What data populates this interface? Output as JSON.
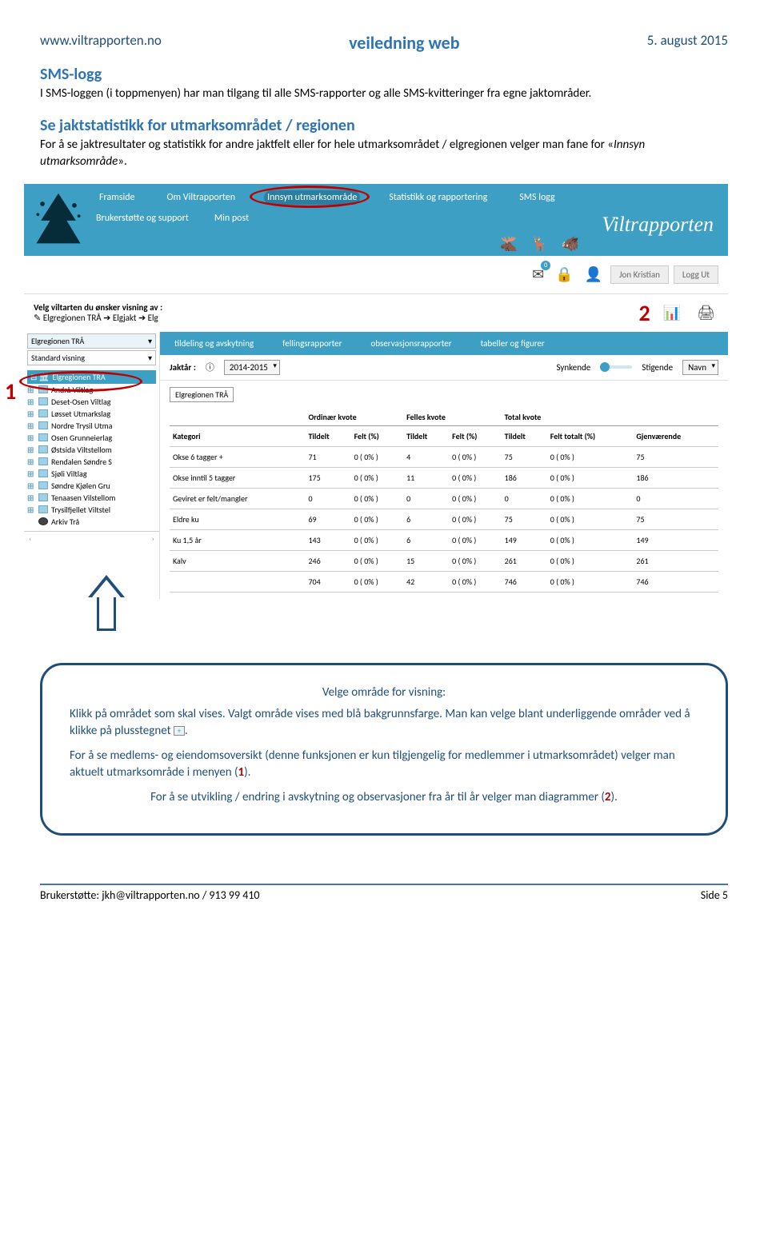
{
  "header": {
    "left": "www.viltrapporten.no",
    "center": "veiledning web",
    "right": "5. august 2015"
  },
  "s1": {
    "title": "SMS-logg",
    "body": "I SMS-loggen (i toppmenyen) har man tilgang til alle SMS-rapporter og alle SMS-kvitteringer fra egne jaktområder."
  },
  "s2": {
    "title": "Se jaktstatistikk for utmarksområdet / regionen",
    "body_a": "For å se jaktresultater og statistikk for andre jaktfelt eller for hele utmarksområdet / elgregionen velger man fane for «",
    "body_i": "Innsyn utmarksområde",
    "body_b": "»."
  },
  "nav": {
    "row1": [
      "Framside",
      "Om Viltrapporten",
      "Innsyn utmarksområde",
      "Statistikk og rapportering",
      "SMS logg"
    ],
    "row2": [
      "Brukerstøtte og support",
      "Min post"
    ],
    "logo": "Viltrapporten"
  },
  "userbar": {
    "badge": "0",
    "user": "Jon Kristian",
    "logout": "Logg Ut"
  },
  "sel": {
    "label": "Velg viltarten du ønsker visning av :",
    "crumbs": "Elgregionen TRÅ ➔ Elgjakt ➔ Elg"
  },
  "marker2": "2",
  "marker1": "1",
  "side": {
    "drop1": "Elgregionen TRÅ",
    "drop2": "Standard visning",
    "root": "Elgregionen TRÅ",
    "nodes": [
      "Andrå Viltlag",
      "Deset-Osen Viltlag",
      "Løsset Utmarkslag",
      "Nordre Trysil Utma",
      "Osen Grunneierlag",
      "Østsida Viltstellom",
      "Rendalen Søndre S",
      "Sjøli Viltlag",
      "Søndre Kjølen Gru",
      "Tenaasen Vilstellom",
      "Trysilfjellet Viltstel",
      "Arkiv Trå"
    ]
  },
  "tabs": [
    "tildeling og avskytning",
    "fellingsrapporter",
    "observasjonsrapporter",
    "tabeller og figurer"
  ],
  "filter": {
    "yearLbl": "Jaktår :",
    "year": "2014-2015",
    "sortA": "Synkende",
    "sortB": "Stigende",
    "sortCol": "Navn"
  },
  "table": {
    "tag": "Elgregionen TRÅ",
    "groupHeaders": [
      "",
      "Ordinær kvote",
      "Felles kvote",
      "Total kvote"
    ],
    "cols": [
      "Kategori",
      "Tildelt",
      "Felt (%)",
      "Tildelt",
      "Felt (%)",
      "Tildelt",
      "Felt totalt (%)",
      "Gjenværende"
    ],
    "rows": [
      [
        "Okse 6 tagger +",
        "71",
        "0 ( 0% )",
        "4",
        "0 ( 0% )",
        "75",
        "0 ( 0% )",
        "75"
      ],
      [
        "Okse inntil 5 tagger",
        "175",
        "0 ( 0% )",
        "11",
        "0 ( 0% )",
        "186",
        "0 ( 0% )",
        "186"
      ],
      [
        "Geviret er felt/mangler",
        "0",
        "0 ( 0% )",
        "0",
        "0 ( 0% )",
        "0",
        "0 ( 0% )",
        "0"
      ],
      [
        "Eldre ku",
        "69",
        "0 ( 0% )",
        "6",
        "0 ( 0% )",
        "75",
        "0 ( 0% )",
        "75"
      ],
      [
        "Ku 1,5 år",
        "143",
        "0 ( 0% )",
        "6",
        "0 ( 0% )",
        "149",
        "0 ( 0% )",
        "149"
      ],
      [
        "Kalv",
        "246",
        "0 ( 0% )",
        "15",
        "0 ( 0% )",
        "261",
        "0 ( 0% )",
        "261"
      ],
      [
        "",
        "704",
        "0 ( 0% )",
        "42",
        "0 ( 0% )",
        "746",
        "0 ( 0% )",
        "746"
      ]
    ]
  },
  "callout": {
    "title": "Velge område for visning:",
    "p1a": "Klikk på området som skal vises. Valgt område vises med blå bakgrunnsfarge. Man kan velge blant underliggende områder ved å klikke på plusstegnet ",
    "p1b": ".",
    "p2a": "For å se medlems- og eiendomsoversikt (denne funksjonen er kun tilgjengelig for medlemmer i utmarksområdet) velger man aktuelt utmarksområde i menyen (",
    "m1": "1",
    "p2b": ").",
    "p3a": "For å se utvikling / endring i avskytning og observasjoner fra år til år velger man diagrammer (",
    "m2": "2",
    "p3b": ")."
  },
  "footer": {
    "left": "Brukerstøtte:  jkh@viltrapporten.no  /  913 99 410",
    "right": "Side 5"
  }
}
